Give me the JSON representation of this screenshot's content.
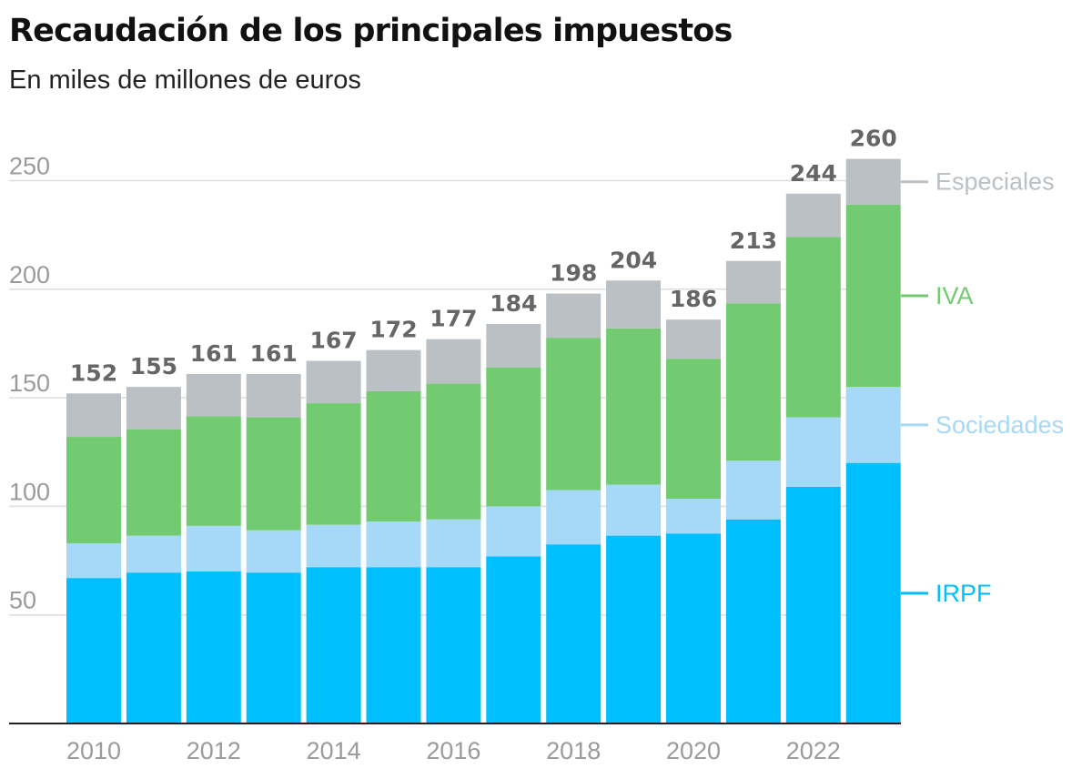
{
  "header": {
    "title": "Recaudación de los principales impuestos",
    "subtitle": "En miles de millones de euros"
  },
  "colors": {
    "IRPF": "#00bfff",
    "Sociedades": "#a6d9f7",
    "IVA": "#73cb71",
    "Especiales": "#bbc0c4"
  },
  "chart_data": {
    "type": "bar",
    "stacked": true,
    "categories": [
      "2010",
      "2011",
      "2012",
      "2013",
      "2014",
      "2015",
      "2016",
      "2017",
      "2018",
      "2019",
      "2020",
      "2021",
      "2022",
      "2023"
    ],
    "x_tick_labels": [
      "2010",
      "2012",
      "2014",
      "2016",
      "2018",
      "2020",
      "2022"
    ],
    "series": [
      {
        "name": "IRPF",
        "values": [
          67,
          69.5,
          70,
          69.5,
          72,
          72,
          72,
          77,
          82.5,
          86.5,
          87.5,
          94,
          109,
          120
        ]
      },
      {
        "name": "Sociedades",
        "values": [
          16,
          17,
          21,
          19.5,
          19.5,
          21,
          22,
          23,
          25,
          23.5,
          16,
          27,
          32,
          35
        ]
      },
      {
        "name": "IVA",
        "values": [
          49,
          49,
          50.5,
          52,
          56,
          60,
          62.5,
          64,
          70,
          72,
          64.5,
          72.5,
          83,
          84
        ]
      },
      {
        "name": "Especiales",
        "values": [
          20,
          19.5,
          19.5,
          20,
          19.5,
          19,
          20.5,
          20,
          20.5,
          22,
          18,
          19.5,
          20,
          21
        ]
      }
    ],
    "totals": [
      152,
      155,
      161,
      161,
      167,
      172,
      177,
      184,
      198,
      204,
      186,
      213,
      244,
      260
    ],
    "y_ticks": [
      50,
      100,
      150,
      200,
      250
    ],
    "ylim": [
      0,
      260
    ],
    "grid": true,
    "legend_placement": "right, aligned with series"
  }
}
